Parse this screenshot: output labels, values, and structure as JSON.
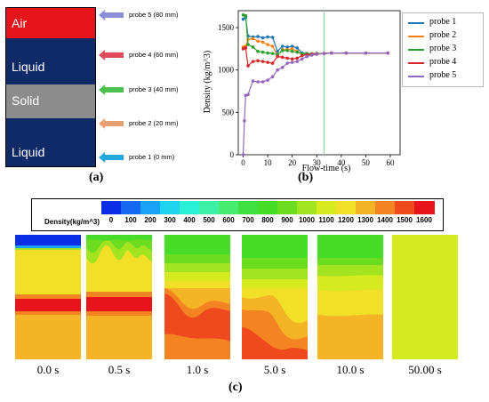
{
  "panel_a": {
    "label": "(a)",
    "layers": [
      {
        "name": "Air",
        "color": "#e8141c"
      },
      {
        "name": "Liquid",
        "color": "#0f2a66"
      },
      {
        "name": "Solid",
        "color": "#8c8c8c"
      },
      {
        "name": "Liquid",
        "color": "#0f2a66"
      }
    ],
    "probes": [
      {
        "label": "probe 5 (80 mm)",
        "color": "#8a8fd6"
      },
      {
        "label": "probe 4 (60 mm)",
        "color": "#e04a5a"
      },
      {
        "label": "probe 3 (40 mm)",
        "color": "#4cc04c"
      },
      {
        "label": "probe 2 (20 mm)",
        "color": "#e8a070"
      },
      {
        "label": "probe 1 (0 mm)",
        "color": "#22a8dc"
      }
    ]
  },
  "panel_b": {
    "label": "(b)",
    "legend": [
      "probe 1",
      "probe 2",
      "probe 3",
      "probe 4",
      "probe 5"
    ]
  },
  "panel_c": {
    "label": "(c)",
    "colorbar_title": "Density(kg/m^3)",
    "colorbar_ticks": [
      "0",
      "100",
      "200",
      "300",
      "400",
      "500",
      "600",
      "700",
      "800",
      "900",
      "1000",
      "1100",
      "1200",
      "1300",
      "1400",
      "1500",
      "1600"
    ],
    "colorbar_colors": [
      "#0a2ee8",
      "#1469f0",
      "#1aa2f6",
      "#20d4f0",
      "#2af0d8",
      "#3cf0a8",
      "#46ec70",
      "#40e040",
      "#46dc28",
      "#6cdc20",
      "#a2e420",
      "#d6ea20",
      "#f2e028",
      "#f4b426",
      "#f48422",
      "#ee4a1e",
      "#e8141c"
    ],
    "times": [
      "0.0 s",
      "0.5 s",
      "1.0 s",
      "5.0 s",
      "10.0 s",
      "50.00 s"
    ]
  },
  "chart_data": {
    "type": "line",
    "title": "",
    "xlabel": "Flow-time (s)",
    "ylabel": "Density (kg/m^3)",
    "xlim": [
      -2,
      64
    ],
    "ylim": [
      0,
      1700
    ],
    "xticks": [
      0,
      10,
      20,
      30,
      40,
      50,
      60
    ],
    "yticks": [
      0,
      500,
      1000,
      1500
    ],
    "grid": false,
    "legend_position": "outside-right",
    "vline_x": 33,
    "series": [
      {
        "name": "probe 1",
        "color": "#1f77b4",
        "points": [
          [
            0,
            1600
          ],
          [
            1,
            1620
          ],
          [
            2,
            1400
          ],
          [
            4,
            1390
          ],
          [
            6,
            1395
          ],
          [
            8,
            1380
          ],
          [
            10,
            1390
          ],
          [
            12,
            1385
          ],
          [
            14,
            1220
          ],
          [
            16,
            1280
          ],
          [
            18,
            1270
          ],
          [
            20,
            1280
          ],
          [
            22,
            1260
          ],
          [
            24,
            1200
          ],
          [
            26,
            1195
          ],
          [
            28,
            1190
          ],
          [
            30,
            1195
          ],
          [
            33,
            1195
          ],
          [
            36,
            1200
          ],
          [
            42,
            1200
          ],
          [
            50,
            1200
          ],
          [
            59,
            1200
          ]
        ]
      },
      {
        "name": "probe 2",
        "color": "#ff7f0e",
        "points": [
          [
            0,
            1270
          ],
          [
            1,
            1280
          ],
          [
            2,
            1360
          ],
          [
            4,
            1370
          ],
          [
            6,
            1340
          ],
          [
            8,
            1330
          ],
          [
            10,
            1300
          ],
          [
            12,
            1280
          ],
          [
            14,
            1170
          ],
          [
            16,
            1240
          ],
          [
            18,
            1240
          ],
          [
            20,
            1250
          ],
          [
            22,
            1220
          ],
          [
            24,
            1190
          ],
          [
            26,
            1190
          ],
          [
            28,
            1190
          ],
          [
            30,
            1195
          ],
          [
            33,
            1195
          ],
          [
            36,
            1200
          ],
          [
            42,
            1200
          ],
          [
            50,
            1200
          ],
          [
            59,
            1200
          ]
        ]
      },
      {
        "name": "probe 3",
        "color": "#2ca02c",
        "points": [
          [
            0,
            1650
          ],
          [
            1,
            1640
          ],
          [
            2,
            1300
          ],
          [
            4,
            1270
          ],
          [
            6,
            1220
          ],
          [
            8,
            1210
          ],
          [
            10,
            1200
          ],
          [
            12,
            1195
          ],
          [
            14,
            1180
          ],
          [
            16,
            1230
          ],
          [
            18,
            1230
          ],
          [
            20,
            1220
          ],
          [
            22,
            1210
          ],
          [
            24,
            1190
          ],
          [
            26,
            1190
          ],
          [
            28,
            1190
          ],
          [
            30,
            1195
          ],
          [
            33,
            1195
          ],
          [
            36,
            1200
          ],
          [
            42,
            1200
          ],
          [
            50,
            1200
          ],
          [
            59,
            1200
          ]
        ]
      },
      {
        "name": "probe 4",
        "color": "#d62728",
        "points": [
          [
            0,
            1250
          ],
          [
            1,
            1260
          ],
          [
            2,
            1050
          ],
          [
            4,
            1100
          ],
          [
            6,
            1110
          ],
          [
            8,
            1100
          ],
          [
            10,
            1090
          ],
          [
            12,
            1080
          ],
          [
            14,
            1160
          ],
          [
            16,
            1150
          ],
          [
            18,
            1140
          ],
          [
            20,
            1130
          ],
          [
            22,
            1140
          ],
          [
            24,
            1170
          ],
          [
            26,
            1180
          ],
          [
            28,
            1185
          ],
          [
            30,
            1190
          ],
          [
            33,
            1195
          ],
          [
            36,
            1200
          ],
          [
            42,
            1200
          ],
          [
            50,
            1200
          ],
          [
            59,
            1200
          ]
        ]
      },
      {
        "name": "probe 5",
        "color": "#9467bd",
        "points": [
          [
            0,
            0
          ],
          [
            0.5,
            400
          ],
          [
            1,
            700
          ],
          [
            2,
            710
          ],
          [
            4,
            870
          ],
          [
            6,
            860
          ],
          [
            8,
            860
          ],
          [
            10,
            880
          ],
          [
            12,
            920
          ],
          [
            14,
            1000
          ],
          [
            16,
            1030
          ],
          [
            18,
            1080
          ],
          [
            20,
            1090
          ],
          [
            22,
            1100
          ],
          [
            24,
            1130
          ],
          [
            26,
            1160
          ],
          [
            28,
            1175
          ],
          [
            30,
            1185
          ],
          [
            33,
            1195
          ],
          [
            36,
            1200
          ],
          [
            42,
            1200
          ],
          [
            50,
            1200
          ],
          [
            59,
            1200
          ]
        ]
      }
    ]
  }
}
